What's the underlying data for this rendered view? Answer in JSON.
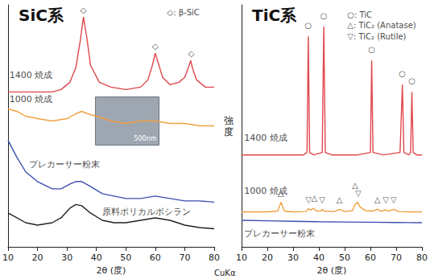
{
  "chart_data": [
    {
      "type": "line",
      "title": "SiC系",
      "xlabel": "2θ (度)",
      "xlim": [
        10,
        80
      ],
      "xticks": [
        10,
        20,
        30,
        40,
        50,
        60,
        70,
        80
      ],
      "ylim": [
        0,
        100
      ],
      "tick_labels": "x",
      "grid": false,
      "inset": {
        "label": "500nm"
      },
      "series": [
        {
          "name": "1400 焼成",
          "color": "#e0474c",
          "label_position": [
            10.5,
            71
          ],
          "x": [
            10,
            15,
            20,
            25,
            28,
            31,
            33,
            34.5,
            35.6,
            36.8,
            38,
            41,
            45,
            50,
            55,
            57.5,
            59,
            60,
            61,
            62.5,
            65,
            68,
            70,
            71.5,
            72,
            72.6,
            74,
            77,
            80
          ],
          "values": [
            64,
            64,
            64,
            64,
            65,
            68,
            74,
            85,
            95,
            86,
            75,
            68,
            66,
            65,
            66,
            69,
            75,
            80,
            76,
            70,
            67,
            68,
            70,
            75,
            77,
            74,
            69,
            66,
            66
          ]
        },
        {
          "name": "1000 焼成",
          "color": "#f0a040",
          "label_position": [
            10.5,
            61
          ],
          "x": [
            10,
            13,
            16,
            20,
            25,
            30,
            33,
            35,
            37,
            40,
            45,
            50,
            55,
            60,
            65,
            70,
            75,
            80
          ],
          "values": [
            57,
            56,
            54,
            53,
            52,
            53,
            55,
            56,
            55,
            54,
            52,
            51,
            52,
            52,
            51,
            51,
            50,
            50
          ]
        },
        {
          "name": "プレカーサー粉末",
          "color": "#3b4fb0",
          "label_position": [
            17,
            34
          ],
          "x": [
            10,
            13,
            16,
            20,
            25,
            28,
            31,
            33,
            35,
            38,
            42,
            46,
            50,
            55,
            60,
            65,
            70,
            75,
            80
          ],
          "values": [
            44,
            37,
            31,
            27,
            24,
            24,
            26,
            27,
            27,
            25,
            22,
            21,
            20,
            20,
            21,
            20,
            19,
            19,
            18.5
          ]
        },
        {
          "name": "原料ポリカルボシラン",
          "color": "#222222",
          "label_position": [
            42,
            14.5
          ],
          "x": [
            10,
            13,
            16,
            20,
            25,
            28,
            31,
            33,
            35,
            38,
            42,
            46,
            50,
            55,
            60,
            65,
            70,
            75,
            80
          ],
          "values": [
            14,
            12,
            10,
            9,
            10,
            12,
            16,
            17.5,
            17,
            14,
            11,
            10,
            10,
            11,
            12,
            11,
            9,
            8,
            7.5
          ]
        }
      ],
      "annotations": [
        {
          "text": "◇: β-SiC",
          "x": 64,
          "y": 97
        },
        {
          "text": "◇",
          "x": 35.6,
          "y": 98
        },
        {
          "text": "◇",
          "x": 60,
          "y": 83
        },
        {
          "text": "◇",
          "x": 72.2,
          "y": 80
        }
      ]
    },
    {
      "type": "line",
      "title": "TiC系",
      "xlabel": "2θ (度)",
      "ylabel": "強度",
      "xlim": [
        10,
        80
      ],
      "xticks": [
        10,
        20,
        30,
        40,
        50,
        60,
        70,
        80
      ],
      "ylim": [
        0,
        100
      ],
      "tick_labels": "x",
      "grid": false,
      "series": [
        {
          "name": "1400 焼成",
          "color": "#e0474c",
          "label_position": [
            11,
            45
          ],
          "x": [
            10,
            20,
            30,
            34,
            35.4,
            35.9,
            36.4,
            38,
            41.3,
            41.9,
            42.5,
            45,
            55,
            60,
            60.5,
            61,
            65,
            71.5,
            72.4,
            73,
            75,
            75.6,
            76.1,
            76.6,
            78,
            80
          ],
          "values": [
            38,
            38,
            38,
            38,
            39,
            87,
            39,
            38,
            39,
            91,
            39,
            38,
            38,
            39,
            77,
            39,
            38,
            39,
            67,
            39,
            38,
            39,
            64,
            39,
            38,
            38
          ]
        },
        {
          "name": "1000 焼成",
          "color": "#f0a040",
          "label_position": [
            11,
            23
          ],
          "x": [
            10,
            15,
            20,
            24,
            25.3,
            26.6,
            30,
            35,
            36,
            37,
            37.8,
            39,
            41,
            41.3,
            42,
            46,
            48,
            50,
            53,
            54,
            55,
            56,
            58,
            61,
            62.7,
            64,
            66,
            67,
            69,
            71,
            75,
            80
          ],
          "values": [
            14.5,
            14.5,
            14.5,
            14.8,
            18.5,
            14.8,
            14.5,
            14.6,
            15.8,
            15.2,
            16,
            14.8,
            14.9,
            15.6,
            14.8,
            14.6,
            15.5,
            14.6,
            15,
            17.5,
            18.5,
            16.5,
            15,
            14.8,
            15.6,
            14.8,
            15.3,
            14.8,
            15.5,
            14.6,
            14.5,
            14.5
          ]
        },
        {
          "name": "プレカーサー粉末",
          "color": "#3b4fb0",
          "label_position": [
            11,
            5.5
          ],
          "x": [
            10,
            20,
            30,
            40,
            50,
            60,
            70,
            80
          ],
          "values": [
            11,
            10.8,
            10.6,
            10.4,
            10.3,
            10.2,
            10.1,
            10
          ]
        }
      ],
      "annotations": [
        {
          "text": "○: TiC",
          "x": 51,
          "y": 96
        },
        {
          "text": "△: TiC₂ (Anatase)",
          "x": 51,
          "y": 91.5
        },
        {
          "text": "▽: TiC₂ (Rutile)",
          "x": 51,
          "y": 87
        },
        {
          "text": "○",
          "x": 35.9,
          "y": 91.5
        },
        {
          "text": "○",
          "x": 41.9,
          "y": 95.5
        },
        {
          "text": "○",
          "x": 60.5,
          "y": 81.5
        },
        {
          "text": "○",
          "x": 72.4,
          "y": 71.5
        },
        {
          "text": "○",
          "x": 76.1,
          "y": 68.5
        },
        {
          "text": "△",
          "x": 25.3,
          "y": 22
        },
        {
          "text": "▽",
          "x": 36,
          "y": 19.5
        },
        {
          "text": "△",
          "x": 38.2,
          "y": 20
        },
        {
          "text": "▽",
          "x": 41.3,
          "y": 19.5
        },
        {
          "text": "△",
          "x": 48,
          "y": 19.5
        },
        {
          "text": "△",
          "x": 54,
          "y": 25.5
        },
        {
          "text": "▽",
          "x": 55.3,
          "y": 22
        },
        {
          "text": "△",
          "x": 62.7,
          "y": 19.5
        },
        {
          "text": "▽",
          "x": 66,
          "y": 19.5
        },
        {
          "text": "▽",
          "x": 69,
          "y": 19.5
        }
      ]
    }
  ],
  "footnote": "CuKα"
}
